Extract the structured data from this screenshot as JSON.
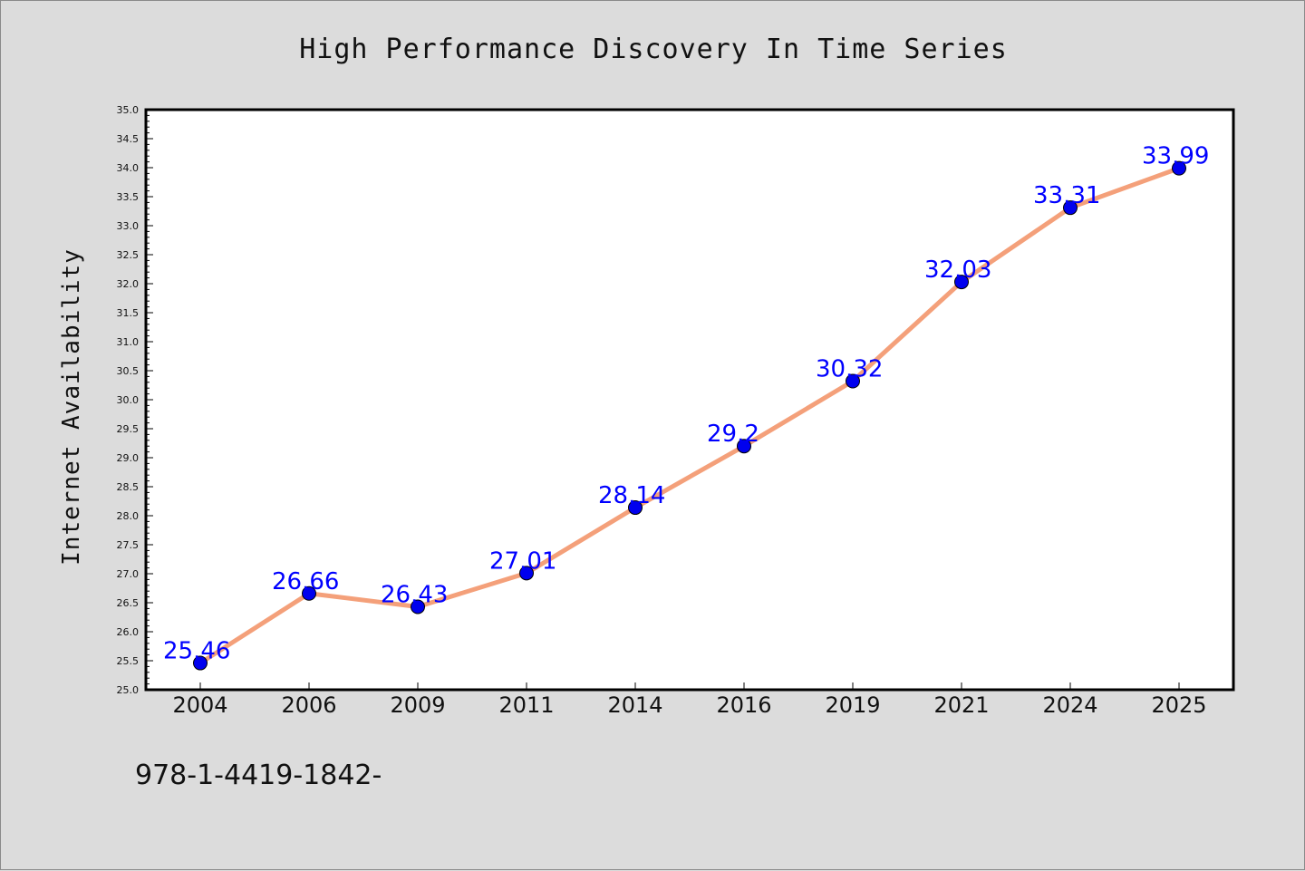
{
  "chart_data": {
    "type": "line",
    "title": "High Performance Discovery In Time Series",
    "xlabel": "",
    "ylabel": "Internet Availability",
    "categories": [
      "2004",
      "2006",
      "2009",
      "2011",
      "2014",
      "2016",
      "2019",
      "2021",
      "2024",
      "2025"
    ],
    "series": [
      {
        "values": [
          25.46,
          26.66,
          26.43,
          27.01,
          28.14,
          29.2,
          30.32,
          32.03,
          33.31,
          33.99
        ],
        "labels": [
          "25.46",
          "26.66",
          "26.43",
          "27.01",
          "28.14",
          "29.2",
          "30.32",
          "32.03",
          "33.31",
          "33.99"
        ]
      }
    ],
    "ylim": [
      25.0,
      35.0
    ],
    "y_ticks": [
      "25.0",
      "25.5",
      "26.0",
      "26.5",
      "27.0",
      "27.5",
      "28.0",
      "28.5",
      "29.0",
      "29.5",
      "30.0",
      "30.5",
      "31.0",
      "31.5",
      "32.0",
      "32.5",
      "33.0",
      "33.5",
      "34.0",
      "34.5",
      "35.0"
    ],
    "grid": false,
    "colors": {
      "line": "#f4a07a",
      "marker": "#0000ee",
      "label": "#0000ff",
      "background": "#dcdcdc",
      "plot_background": "#ffffff"
    }
  },
  "footer": {
    "code": "978-1-4419-1842-"
  }
}
